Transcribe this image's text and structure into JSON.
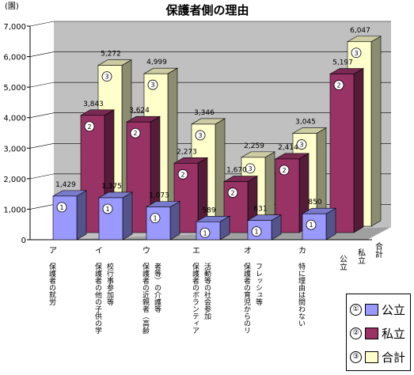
{
  "chart_data": {
    "type": "bar",
    "title": "保護者側の理由",
    "ylabel": "(園)",
    "ylim": [
      0,
      7000
    ],
    "yticks": [
      "0",
      "1,000",
      "2,000",
      "3,000",
      "4,000",
      "5,000",
      "6,000",
      "7,000"
    ],
    "categories": [
      {
        "letter": "ア",
        "lines": [
          "保護者の就労"
        ]
      },
      {
        "letter": "イ",
        "lines": [
          "保護者の他の子供の学",
          "校行事参加等"
        ]
      },
      {
        "letter": "ウ",
        "lines": [
          "保護者の近親者（高齢",
          "者等）の介護等"
        ]
      },
      {
        "letter": "エ",
        "lines": [
          "保護者のボランティア",
          "活動等の社会参加"
        ]
      },
      {
        "letter": "オ",
        "lines": [
          "保護者の育児からのリ",
          "フレッシュ等"
        ]
      },
      {
        "letter": "カ",
        "lines": [
          "特に理由は問わない"
        ]
      }
    ],
    "series": [
      {
        "marker": "①",
        "color": "#9999ff",
        "values": [
          1429,
          1375,
          1073,
          589,
          631,
          850
        ]
      },
      {
        "marker": "②",
        "color": "#993366",
        "values": [
          3843,
          3624,
          2273,
          1670,
          2414,
          5197
        ]
      },
      {
        "marker": "③",
        "color": "#ffffcc",
        "values": [
          5272,
          4999,
          3346,
          2259,
          3045,
          6047
        ]
      }
    ],
    "value_labels": [
      [
        "1,429",
        "1,375",
        "1,073",
        "589",
        "631",
        "850"
      ],
      [
        "3,843",
        "3,624",
        "2,273",
        "1,670",
        "2,414",
        "5,197"
      ],
      [
        "5,272",
        "4,999",
        "3,346",
        "2,259",
        "3,045",
        "6,047"
      ]
    ],
    "depth_axis_labels": [
      "公立",
      "私立",
      "合計"
    ],
    "legend": {
      "placement": "bottom-right",
      "items": [
        {
          "marker": "①",
          "label": "公立"
        },
        {
          "marker": "②",
          "label": "私立"
        },
        {
          "marker": "③",
          "label": "合計"
        }
      ]
    },
    "grid": true
  }
}
